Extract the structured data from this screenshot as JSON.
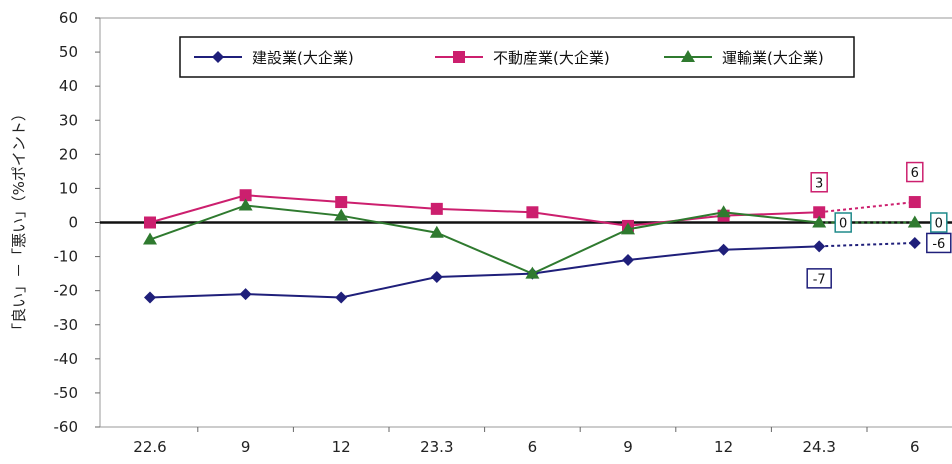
{
  "chart_data": {
    "type": "line",
    "title": "",
    "xlabel": "",
    "ylabel": "「良い」－「悪い」（%ポイント）",
    "ylim": [
      -60,
      60
    ],
    "yticks": [
      60,
      50,
      40,
      30,
      20,
      10,
      0,
      -10,
      -20,
      -30,
      -40,
      -50,
      -60
    ],
    "categories": [
      "22.6",
      "9",
      "12",
      "23.3",
      "6",
      "9",
      "12",
      "24.3",
      "6"
    ],
    "grid": false,
    "legend_position": "top",
    "series": [
      {
        "name": "建設業(大企業)",
        "color": "#1f1f7a",
        "marker": "diamond",
        "values": [
          -22,
          -21,
          -22,
          -16,
          -15,
          -11,
          -8,
          -7,
          -6
        ],
        "last_is_forecast": true
      },
      {
        "name": "不動産業(大企業)",
        "color": "#cc1f6e",
        "marker": "square",
        "values": [
          0,
          8,
          6,
          4,
          3,
          -1,
          2,
          3,
          6
        ],
        "last_is_forecast": true
      },
      {
        "name": "運輸業(大企業)",
        "color": "#2f7a2f",
        "marker": "triangle",
        "values": [
          -5,
          5,
          2,
          -3,
          -15,
          -2,
          3,
          0,
          0
        ],
        "last_is_forecast": true
      }
    ],
    "annotations": [
      {
        "series": 1,
        "index": 7,
        "text": "3",
        "color": "#cc1f6e",
        "position": "above"
      },
      {
        "series": 1,
        "index": 8,
        "text": "6",
        "color": "#cc1f6e",
        "position": "above"
      },
      {
        "series": 2,
        "index": 7,
        "text": "0",
        "color": "#1f8a8a",
        "position": "right"
      },
      {
        "series": 2,
        "index": 8,
        "text": "0",
        "color": "#1f8a8a",
        "position": "right"
      },
      {
        "series": 0,
        "index": 7,
        "text": "-7",
        "color": "#1f1f7a",
        "position": "below"
      },
      {
        "series": 0,
        "index": 8,
        "text": "-6",
        "color": "#1f1f7a",
        "position": "right"
      }
    ]
  }
}
